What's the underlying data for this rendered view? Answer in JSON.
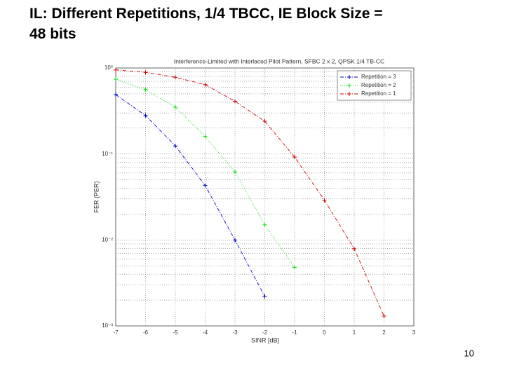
{
  "slide_title": "IL: Different Repetitions, 1/4 TBCC, IE Block Size = 48 bits",
  "page_number": "10",
  "chart_data": {
    "type": "line",
    "title": "Interference-Limited with Interlaced Pilot Pattern, SFBC 2 x 2, QPSK 1/4 TB-CC",
    "x_label": "SINR [dB]",
    "y_label": "FER (PER)",
    "x": [
      -7,
      -6,
      -5,
      -4,
      -3,
      -2,
      -1,
      0,
      1,
      2
    ],
    "series": [
      {
        "name": "Repetition = 3",
        "color": "#0000cc",
        "values": [
          0.49,
          0.28,
          0.124,
          0.043,
          0.01,
          0.0022,
          null,
          null,
          null,
          null
        ]
      },
      {
        "name": "Repetition = 2",
        "color": "#00dd00",
        "values": [
          0.74,
          0.56,
          0.35,
          0.16,
          0.062,
          0.015,
          0.0048,
          null,
          null,
          null
        ]
      },
      {
        "name": "Repetition = 1",
        "color": "#cc0000",
        "values": [
          0.95,
          0.89,
          0.78,
          0.64,
          0.41,
          0.24,
          0.092,
          0.029,
          0.0079,
          0.0013
        ]
      }
    ],
    "xlim": [
      -7,
      3
    ],
    "xticks": [
      -7,
      -6,
      -5,
      -4,
      -3,
      -2,
      -1,
      0,
      1,
      2,
      3
    ],
    "ylim": [
      0.001,
      1
    ],
    "log_y": true,
    "yticks": [
      {
        "value": 1,
        "label": "10⁰"
      },
      {
        "value": 0.1,
        "label": "10⁻¹"
      },
      {
        "value": 0.01,
        "label": "10⁻²"
      },
      {
        "value": 0.001,
        "label": "10⁻³"
      }
    ],
    "grid": true,
    "legend": "upper right"
  }
}
